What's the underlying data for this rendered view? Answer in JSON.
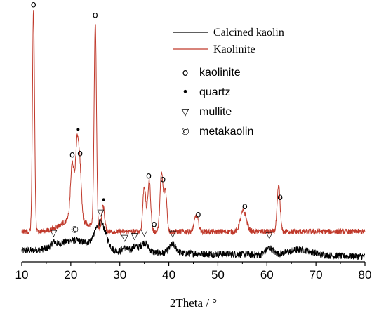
{
  "chart_data": {
    "type": "line",
    "title": "",
    "xlabel": "2Theta / °",
    "ylabel": "",
    "xlim": [
      10,
      80
    ],
    "x_ticks": [
      10,
      20,
      30,
      40,
      50,
      60,
      70,
      80
    ],
    "y_axis_shown": false,
    "grid": false,
    "legend_position": "top-right",
    "series": [
      {
        "name": "Calcined kaolin",
        "color": "#000000",
        "baseline": 8,
        "peaks": [
          [
            26.1,
            19,
            1.1
          ],
          [
            20.8,
            8,
            3.5
          ],
          [
            35.0,
            7,
            0.8
          ],
          [
            40.8,
            6,
            0.7
          ],
          [
            60.5,
            5,
            0.7
          ],
          [
            66.8,
            4,
            2.5
          ],
          [
            31.0,
            3,
            0.6
          ],
          [
            33.0,
            4,
            0.6
          ],
          [
            16.5,
            3,
            0.5
          ]
        ]
      },
      {
        "name": "Kaolinite",
        "color": "#c0392b",
        "baseline": 33,
        "peaks": [
          [
            12.4,
            160,
            0.22
          ],
          [
            25.0,
            150,
            0.24
          ],
          [
            20.3,
            40,
            0.35
          ],
          [
            21.3,
            55,
            0.35
          ],
          [
            21.9,
            30,
            0.3
          ],
          [
            26.6,
            18,
            0.3
          ],
          [
            35.0,
            33,
            0.3
          ],
          [
            36.0,
            37,
            0.3
          ],
          [
            38.5,
            42,
            0.3
          ],
          [
            39.3,
            30,
            0.3
          ],
          [
            45.6,
            12,
            0.4
          ],
          [
            55.2,
            15,
            0.6
          ],
          [
            62.4,
            33,
            0.3
          ],
          [
            20.8,
            10,
            2.5
          ]
        ]
      }
    ],
    "annotations": {
      "kaolinite_markers": {
        "symbol": "o",
        "series": "Kaolinite",
        "x": [
          12.4,
          20.3,
          21.9,
          25.0,
          35.9,
          37.0,
          38.8,
          46.0,
          55.5,
          62.7
        ]
      },
      "quartz_markers": {
        "symbol": "•",
        "series": "Kaolinite",
        "x": [
          21.5,
          26.7
        ]
      },
      "mullite_markers": {
        "symbol": "▽",
        "series": "Calcined kaolin",
        "x": [
          16.5,
          26.1,
          31.0,
          33.0,
          35.0,
          40.8,
          60.5
        ]
      },
      "metakaolin_markers": {
        "symbol": "©",
        "series": "Calcined kaolin",
        "x": [
          20.8
        ]
      }
    },
    "marker_legend": [
      {
        "symbol": "o",
        "label": "kaolinite"
      },
      {
        "symbol": "•",
        "label": "quartz"
      },
      {
        "symbol": "▽",
        "label": "mullite"
      },
      {
        "symbol": "©",
        "label": "metakaolin"
      }
    ]
  }
}
